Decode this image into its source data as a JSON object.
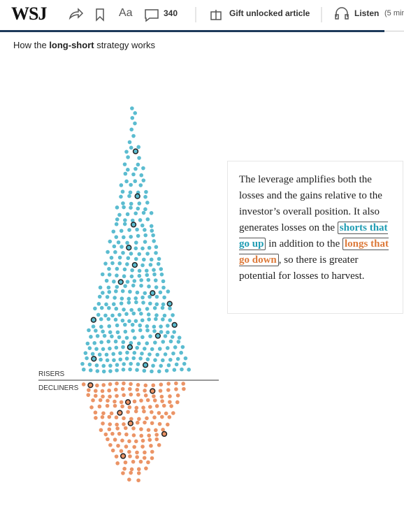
{
  "header": {
    "logo": "WSJ",
    "font_button": "Aa",
    "comment_count": 340,
    "gift": "Gift unlocked article",
    "listen": "Listen",
    "listen_duration": "(5 min"
  },
  "caption": {
    "prefix": "How the ",
    "bold": "long-short",
    "suffix": " strategy works"
  },
  "chart": {
    "upper_label": "RISERS",
    "lower_label": "DECLINERS"
  },
  "note": {
    "text_1": "The leverage amplifies both the losses and the gains relative to the investor’s overall position. It also generates losses on the ",
    "highlight_1": "shorts that go up",
    "text_2": " in addition to the ",
    "highlight_2": "longs that go down",
    "text_3": ", so there is greater potential for losses to harvest."
  }
}
